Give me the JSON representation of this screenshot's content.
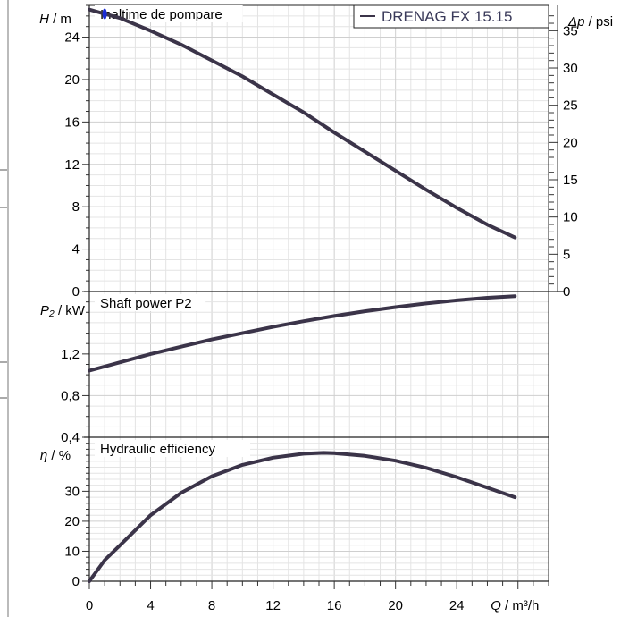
{
  "chart_data": [
    {
      "type": "line",
      "title": "Inaltime de pompare",
      "ylabel_symbol": "H",
      "ylabel_unit": " / m",
      "y2label_symbol": "Δp",
      "y2label_unit": " / psi",
      "ylim": [
        0,
        27
      ],
      "yticks": [
        0,
        4,
        8,
        12,
        16,
        20,
        24
      ],
      "y2ticks": [
        0,
        5,
        10,
        15,
        20,
        25,
        30,
        35
      ],
      "legend": "top-right",
      "grid": true,
      "series": [
        {
          "name": "DRENAG FX 15.15",
          "color": "#3b3449",
          "x": [
            0,
            1,
            2,
            4,
            6,
            8,
            10,
            12,
            14,
            16,
            18,
            20,
            22,
            24,
            26,
            27.8
          ],
          "y": [
            26.6,
            26.2,
            25.8,
            24.6,
            23.3,
            21.8,
            20.3,
            18.6,
            16.9,
            15.0,
            13.2,
            11.4,
            9.6,
            7.9,
            6.3,
            5.1
          ]
        }
      ],
      "marker": {
        "x": 1,
        "y": 26.2,
        "color": "#1a2bd6"
      }
    },
    {
      "type": "line",
      "title": "Shaft power P2",
      "ylabel_symbol": "P₂",
      "ylabel_unit": " / kW",
      "ylim": [
        0.4,
        1.8
      ],
      "yticks": [
        0.4,
        0.8,
        1.2
      ],
      "ytick_labels": [
        "0,4",
        "0,8",
        "1,2"
      ],
      "grid": true,
      "series": [
        {
          "color": "#3b3449",
          "x": [
            0,
            2,
            4,
            6,
            8,
            10,
            12,
            14,
            16,
            18,
            20,
            22,
            24,
            26,
            27.8
          ],
          "y": [
            1.04,
            1.12,
            1.2,
            1.27,
            1.34,
            1.4,
            1.46,
            1.515,
            1.565,
            1.61,
            1.65,
            1.685,
            1.715,
            1.74,
            1.755
          ]
        }
      ]
    },
    {
      "type": "line",
      "title": "Hydraulic efficiency",
      "ylabel_symbol": "η",
      "ylabel_unit": " / %",
      "ylim": [
        0,
        48
      ],
      "yticks": [
        0,
        10,
        20,
        30
      ],
      "xlabel_symbol": "Q",
      "xlabel_unit": " / m³/h",
      "xlim": [
        0,
        30
      ],
      "xticks": [
        0,
        4,
        8,
        12,
        16,
        20,
        24
      ],
      "grid": true,
      "series": [
        {
          "color": "#3b3449",
          "x": [
            0,
            1,
            2,
            4,
            6,
            8,
            10,
            12,
            14,
            15.3,
            16,
            18,
            20,
            22,
            24,
            26,
            27.8
          ],
          "y": [
            0,
            7,
            12,
            22,
            29.5,
            35,
            38.8,
            41.2,
            42.5,
            42.8,
            42.7,
            41.8,
            40.2,
            37.8,
            34.7,
            31.2,
            28
          ]
        }
      ]
    }
  ]
}
